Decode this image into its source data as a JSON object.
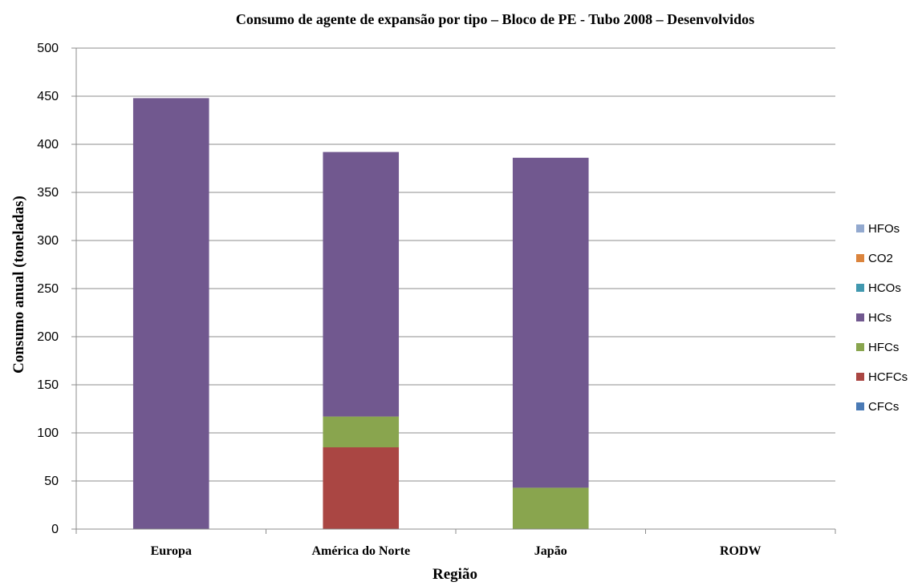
{
  "chart_data": {
    "type": "bar",
    "stacked": true,
    "title": "Consumo de agente de expansão por tipo – Bloco de PE - Tubo 2008 – Desenvolvidos",
    "xlabel": "Região",
    "ylabel": "Consumo anual (toneladas)",
    "ylim": [
      0,
      500
    ],
    "yticks": [
      0,
      50,
      100,
      150,
      200,
      250,
      300,
      350,
      400,
      450,
      500
    ],
    "grid": true,
    "legend_position": "right",
    "categories": [
      "Europa",
      "América do Norte",
      "Japão",
      "RODW"
    ],
    "series": [
      {
        "name": "CFCs",
        "color": "#4a7ab5",
        "values": [
          0,
          0,
          0,
          0
        ]
      },
      {
        "name": "HCFCs",
        "color": "#aa4643",
        "values": [
          0,
          85,
          0,
          0
        ]
      },
      {
        "name": "HFCs",
        "color": "#89a54e",
        "values": [
          0,
          32,
          43,
          0
        ]
      },
      {
        "name": "HCs",
        "color": "#71588f",
        "values": [
          448,
          275,
          343,
          0
        ]
      },
      {
        "name": "HCOs",
        "color": "#4198af",
        "values": [
          0,
          0,
          0,
          0
        ]
      },
      {
        "name": "CO2",
        "color": "#db843d",
        "values": [
          0,
          0,
          0,
          0
        ]
      },
      {
        "name": "HFOs",
        "color": "#93a9cf",
        "values": [
          0,
          0,
          0,
          0
        ]
      }
    ]
  }
}
